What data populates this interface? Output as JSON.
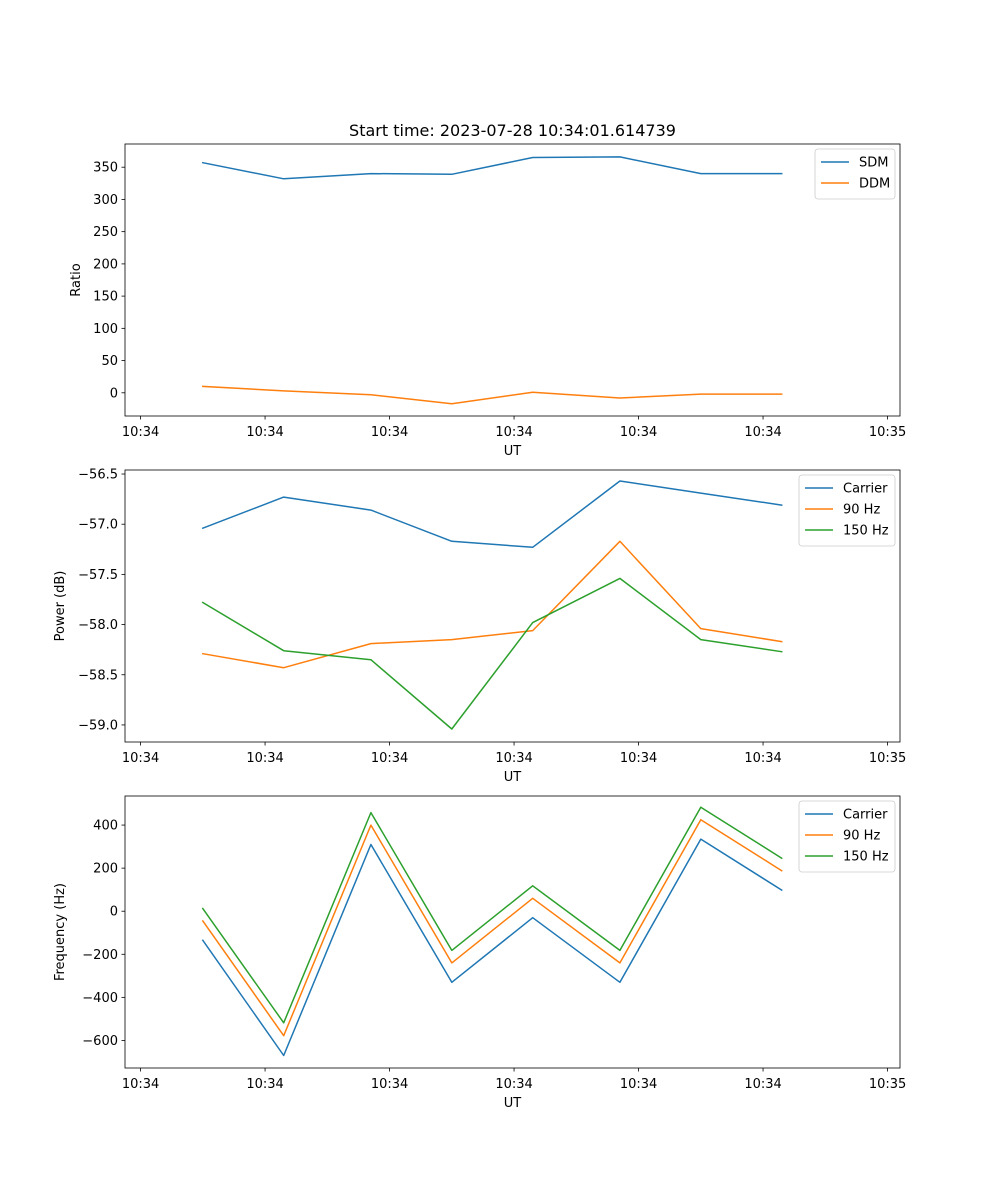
{
  "figure_title": "Start time: 2023-07-28 10:34:01.614739",
  "colors": {
    "c1": "#1f77b4",
    "c2": "#ff7f0e",
    "c3": "#2ca02c"
  },
  "chart_data": [
    {
      "type": "line",
      "title": "Start time: 2023-07-28 10:34:01.614739",
      "xlabel": "UT",
      "ylabel": "Ratio",
      "x": [
        1.0,
        2.3,
        3.7,
        5.0,
        6.3,
        7.7,
        9.0,
        10.3
      ],
      "xlim": [
        -0.25,
        12.2
      ],
      "xticks": [
        0.0,
        2.0,
        4.0,
        6.0,
        8.0,
        10.0,
        12.0
      ],
      "xticklabels": [
        "10:34",
        "10:34",
        "10:34",
        "10:34",
        "10:34",
        "10:34",
        "10:35"
      ],
      "ylim": [
        -36,
        386
      ],
      "yticks": [
        0,
        50,
        100,
        150,
        200,
        250,
        300,
        350
      ],
      "yticklabels": [
        "0",
        "50",
        "100",
        "150",
        "200",
        "250",
        "300",
        "350"
      ],
      "legend": "top-right",
      "series": [
        {
          "name": "SDM",
          "color": "#1f77b4",
          "values": [
            357,
            332,
            340,
            339,
            365,
            366,
            340,
            340
          ]
        },
        {
          "name": "DDM",
          "color": "#ff7f0e",
          "values": [
            10,
            3,
            -3,
            -17,
            1,
            -8,
            -2,
            -2
          ]
        }
      ]
    },
    {
      "type": "line",
      "title": "",
      "xlabel": "UT",
      "ylabel": "Power (dB)",
      "x": [
        1.0,
        2.3,
        3.7,
        5.0,
        6.3,
        7.7,
        9.0,
        10.3
      ],
      "xlim": [
        -0.25,
        12.2
      ],
      "xticks": [
        0.0,
        2.0,
        4.0,
        6.0,
        8.0,
        10.0,
        12.0
      ],
      "xticklabels": [
        "10:34",
        "10:34",
        "10:34",
        "10:34",
        "10:34",
        "10:34",
        "10:35"
      ],
      "ylim": [
        -59.17,
        -56.46
      ],
      "yticks": [
        -59.0,
        -58.5,
        -58.0,
        -57.5,
        -57.0,
        -56.5
      ],
      "yticklabels": [
        "−59.0",
        "−58.5",
        "−58.0",
        "−57.5",
        "−57.0",
        "−56.5"
      ],
      "legend": "top-right",
      "series": [
        {
          "name": "Carrier",
          "color": "#1f77b4",
          "values": [
            -57.04,
            -56.73,
            -56.86,
            -57.17,
            -57.23,
            -56.57,
            -56.69,
            -56.81
          ]
        },
        {
          "name": "90 Hz",
          "color": "#ff7f0e",
          "values": [
            -58.29,
            -58.43,
            -58.19,
            -58.15,
            -58.06,
            -57.17,
            -58.04,
            -58.17
          ]
        },
        {
          "name": "150 Hz",
          "color": "#2ca02c",
          "values": [
            -57.78,
            -58.26,
            -58.35,
            -59.04,
            -57.98,
            -57.54,
            -58.15,
            -58.27
          ]
        }
      ]
    },
    {
      "type": "line",
      "title": "",
      "xlabel": "UT",
      "ylabel": "Frequency (Hz)",
      "x": [
        1.0,
        2.3,
        3.7,
        5.0,
        6.3,
        7.7,
        9.0,
        10.3
      ],
      "xlim": [
        -0.25,
        12.2
      ],
      "xticks": [
        0.0,
        2.0,
        4.0,
        6.0,
        8.0,
        10.0,
        12.0
      ],
      "xticklabels": [
        "10:34",
        "10:34",
        "10:34",
        "10:34",
        "10:34",
        "10:34",
        "10:35"
      ],
      "ylim": [
        -728,
        535
      ],
      "yticks": [
        -600,
        -400,
        -200,
        0,
        200,
        400
      ],
      "yticklabels": [
        "−600",
        "−400",
        "−200",
        "0",
        "200",
        "400"
      ],
      "legend": "top-right",
      "series": [
        {
          "name": "Carrier",
          "color": "#1f77b4",
          "values": [
            -135,
            -670,
            310,
            -330,
            -30,
            -330,
            335,
            98
          ]
        },
        {
          "name": "90 Hz",
          "color": "#ff7f0e",
          "values": [
            -45,
            -578,
            400,
            -240,
            60,
            -240,
            425,
            188
          ]
        },
        {
          "name": "150 Hz",
          "color": "#2ca02c",
          "values": [
            12,
            -518,
            458,
            -182,
            118,
            -182,
            483,
            246
          ]
        }
      ]
    }
  ]
}
